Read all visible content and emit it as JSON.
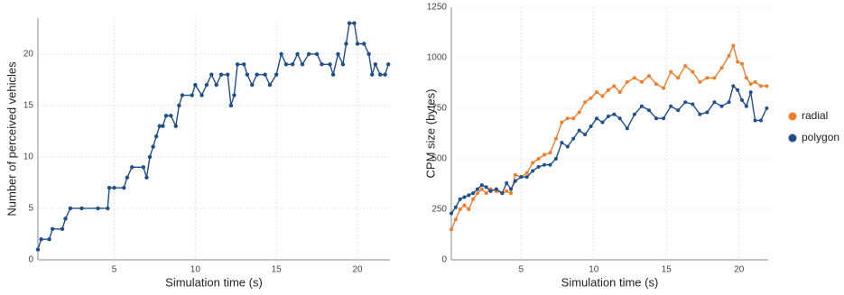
{
  "chart_data": [
    {
      "type": "line",
      "x_label": "Simulation time (s)",
      "y_label": "Number of perceived vehicles",
      "xlim": [
        0.3,
        22
      ],
      "ylim": [
        0,
        23.5
      ],
      "xticks": [
        5,
        10,
        15,
        20
      ],
      "yticks": [
        0,
        5,
        10,
        15,
        20
      ],
      "grid": true,
      "x": [
        0.3,
        0.5,
        1,
        1.2,
        1.8,
        2,
        2.3,
        3,
        4,
        4.6,
        4.7,
        5,
        5.6,
        5.8,
        6.1,
        6.8,
        7,
        7.2,
        7.4,
        7.6,
        7.8,
        8,
        8.2,
        8.5,
        8.8,
        9,
        9.2,
        9.8,
        10,
        10.4,
        10.7,
        11,
        11.3,
        11.6,
        12,
        12.2,
        12.4,
        12.6,
        13,
        13.2,
        13.5,
        13.8,
        14.3,
        14.6,
        15,
        15.3,
        15.6,
        16,
        16.3,
        16.6,
        17,
        17.5,
        17.8,
        18.3,
        18.5,
        18.8,
        19.1,
        19.3,
        19.5,
        19.8,
        20,
        20.4,
        20.7,
        20.9,
        21.1,
        21.4,
        21.7,
        21.9
      ],
      "series": [
        {
          "color": "#1f4e8c",
          "values": [
            1,
            2,
            2,
            3,
            3,
            4,
            5,
            5,
            5,
            5,
            7,
            7,
            7,
            8,
            9,
            9,
            8,
            10,
            11,
            12,
            13,
            13,
            14,
            14,
            13,
            15,
            16,
            16,
            17,
            16,
            17,
            18,
            17,
            18,
            18,
            15,
            16,
            19,
            19,
            18,
            17,
            18,
            18,
            17,
            18,
            20,
            19,
            19,
            20,
            19,
            20,
            20,
            19,
            19,
            18,
            20,
            19,
            21,
            23,
            23,
            21,
            21,
            20,
            18,
            19,
            18,
            18,
            19
          ]
        }
      ]
    },
    {
      "type": "line",
      "x_label": "Simulation time (s)",
      "y_label": "CPM size (bytes)",
      "xlim": [
        0.2,
        22
      ],
      "ylim": [
        0,
        1250
      ],
      "xticks": [
        5,
        10,
        15,
        20
      ],
      "yticks": [
        0,
        250,
        500,
        750,
        1000,
        1250
      ],
      "grid": true,
      "legend": "right",
      "x": [
        0.2,
        0.5,
        0.8,
        1.1,
        1.4,
        1.7,
        2,
        2.3,
        2.6,
        2.9,
        3.3,
        3.7,
        4,
        4.3,
        4.6,
        5,
        5.4,
        5.8,
        6.2,
        6.6,
        7,
        7.4,
        7.8,
        8.2,
        8.6,
        9,
        9.4,
        9.8,
        10.2,
        10.6,
        11,
        11.4,
        11.8,
        12.3,
        12.8,
        13.3,
        13.8,
        14.3,
        14.8,
        15.3,
        15.8,
        16.3,
        16.8,
        17.3,
        17.8,
        18.3,
        18.8,
        19.3,
        19.6,
        19.9,
        20.2,
        20.5,
        20.8,
        21.1,
        21.5,
        21.9
      ],
      "series": [
        {
          "name": "radial",
          "color": "#f07d2a",
          "values": [
            150,
            200,
            250,
            270,
            250,
            300,
            330,
            350,
            330,
            350,
            340,
            330,
            340,
            330,
            420,
            410,
            430,
            480,
            500,
            520,
            530,
            600,
            680,
            700,
            700,
            730,
            780,
            800,
            830,
            810,
            840,
            860,
            830,
            880,
            900,
            880,
            910,
            870,
            850,
            930,
            900,
            960,
            930,
            880,
            900,
            900,
            950,
            1010,
            1060,
            980,
            970,
            900,
            870,
            880,
            860,
            860
          ]
        },
        {
          "name": "polygon",
          "color": "#1f4e8c",
          "values": [
            230,
            260,
            300,
            310,
            320,
            330,
            350,
            370,
            360,
            340,
            350,
            330,
            380,
            350,
            390,
            410,
            410,
            440,
            460,
            470,
            470,
            500,
            580,
            560,
            600,
            640,
            620,
            660,
            700,
            680,
            710,
            720,
            700,
            650,
            720,
            760,
            740,
            700,
            700,
            760,
            740,
            780,
            770,
            720,
            730,
            780,
            760,
            780,
            860,
            840,
            790,
            760,
            830,
            690,
            690,
            750
          ]
        }
      ]
    }
  ]
}
